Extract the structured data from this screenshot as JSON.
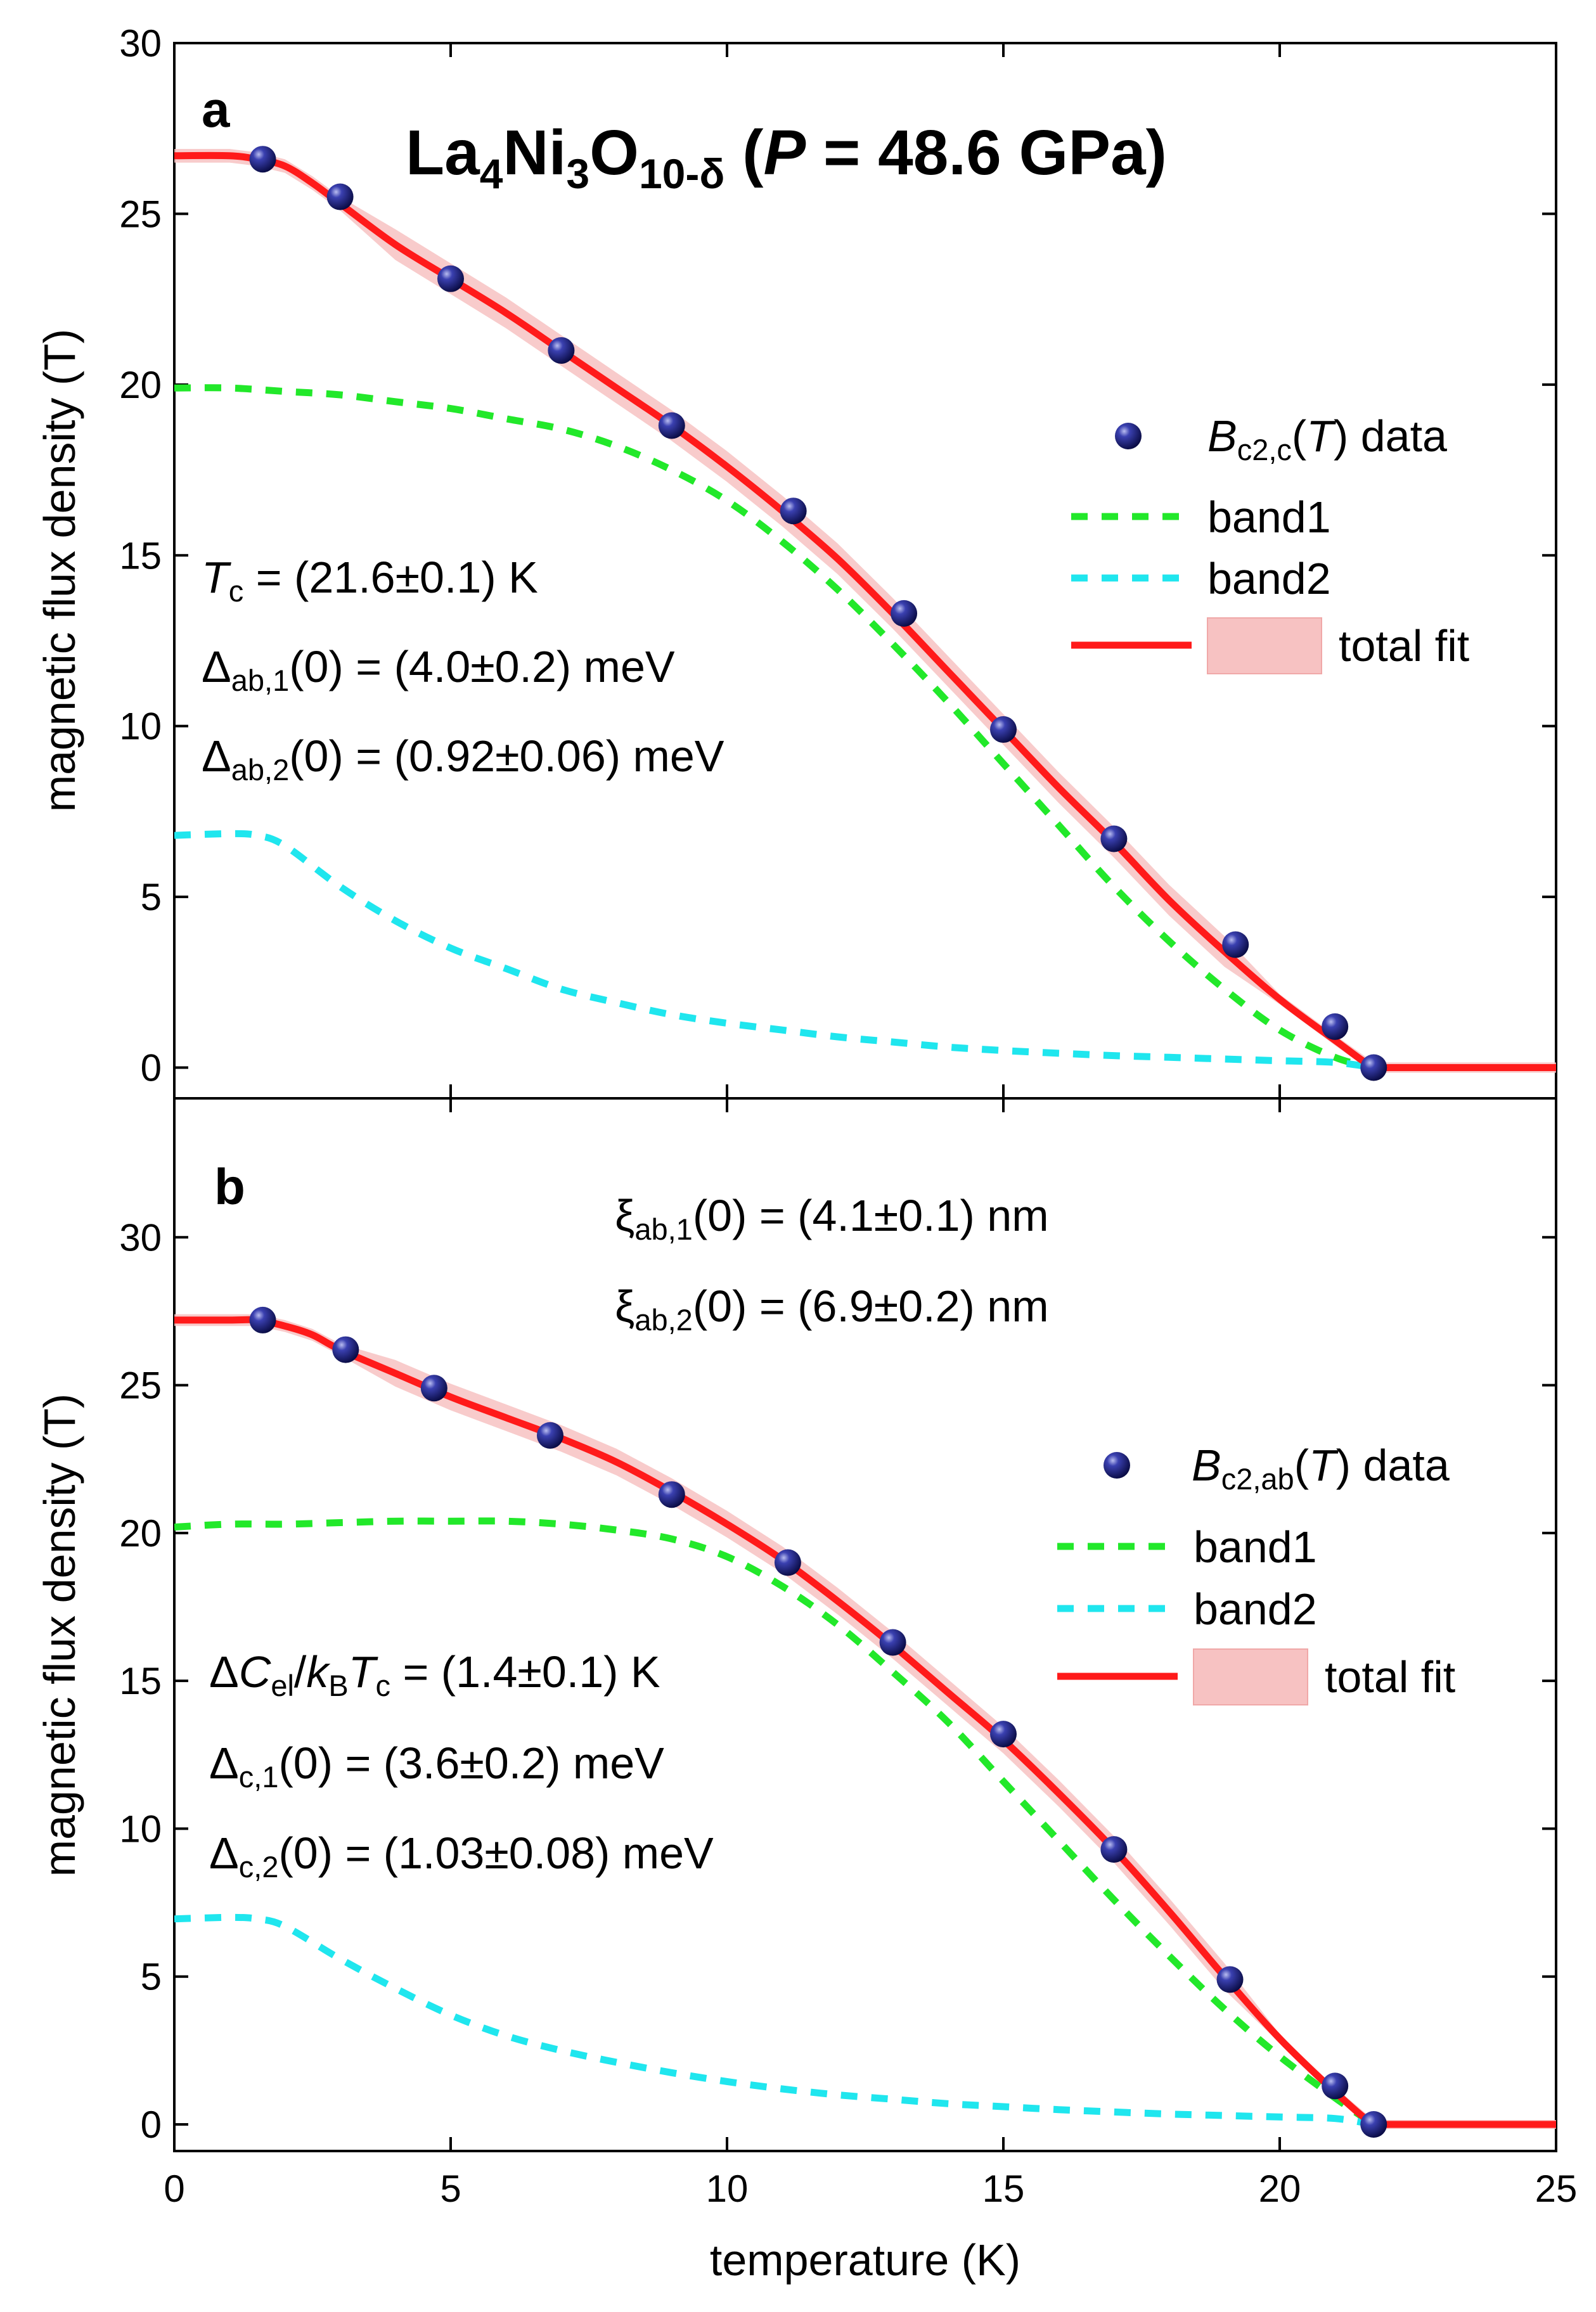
{
  "chart_data": [
    {
      "type": "line",
      "panel": "a",
      "title_parts": {
        "la": "La",
        "la_sub": "4",
        "ni": "Ni",
        "ni_sub": "3",
        "o": "O",
        "o_sub": "10-δ",
        "open": " (",
        "p": "P",
        "eq": " = 48.6 GPa)"
      },
      "xlabel": "temperature (K)",
      "ylabel": "magnetic flux density (T)",
      "xlim": [
        0,
        25
      ],
      "ylim": [
        -0.9,
        30
      ],
      "xticks": [
        0,
        5,
        10,
        15,
        20,
        25
      ],
      "yticks": [
        0,
        5,
        10,
        15,
        20,
        25,
        30
      ],
      "legend": {
        "data": {
          "b": "B",
          "sub": "c2,c",
          "open": "(",
          "t": "T",
          "close": ") data"
        },
        "band1": "band1",
        "band2": "band2",
        "total": "total fit"
      },
      "annotations": [
        {
          "main": "T",
          "sub": "c",
          "rest": " = (21.6±0.1) K"
        },
        {
          "main": "Δ",
          "sub": "ab,1",
          "rest": "(0) = (4.0±0.2) meV"
        },
        {
          "main": "Δ",
          "sub": "ab,2",
          "rest": "(0) = (0.92±0.06) meV"
        }
      ],
      "data_points": {
        "x": [
          1.6,
          3.0,
          5.0,
          7.0,
          9.0,
          11.2,
          13.2,
          15.0,
          17.0,
          19.2,
          21.0,
          21.7
        ],
        "y": [
          26.6,
          25.5,
          23.1,
          21.0,
          18.8,
          16.3,
          13.3,
          9.9,
          6.7,
          3.6,
          1.2,
          0.0
        ]
      },
      "band1": {
        "x": [
          0,
          1,
          2,
          3,
          4,
          5,
          6,
          7,
          8,
          9,
          10,
          11,
          12,
          13,
          14,
          15,
          16,
          17,
          18,
          19,
          20,
          21,
          21.7
        ],
        "y": [
          19.9,
          19.9,
          19.8,
          19.7,
          19.5,
          19.3,
          19.0,
          18.7,
          18.2,
          17.5,
          16.6,
          15.4,
          14.0,
          12.4,
          10.7,
          8.9,
          7.1,
          5.3,
          3.7,
          2.3,
          1.1,
          0.3,
          0.0
        ]
      },
      "band2": {
        "x": [
          0,
          1,
          1.5,
          2,
          3,
          4,
          5,
          6,
          7,
          8,
          9,
          10,
          11,
          12,
          13,
          14,
          15,
          16,
          17,
          18,
          19,
          20,
          21,
          21.7
        ],
        "y": [
          6.8,
          6.85,
          6.8,
          6.5,
          5.3,
          4.3,
          3.5,
          2.9,
          2.3,
          1.9,
          1.55,
          1.3,
          1.1,
          0.9,
          0.75,
          0.6,
          0.5,
          0.42,
          0.35,
          0.3,
          0.25,
          0.2,
          0.15,
          0.0
        ]
      },
      "total": {
        "x": [
          0,
          1,
          1.5,
          2,
          2.5,
          3,
          4,
          5,
          6,
          7,
          8,
          9,
          10,
          11,
          12,
          13,
          14,
          15,
          16,
          17,
          18,
          19,
          20,
          21,
          21.7,
          22,
          25
        ],
        "y": [
          26.7,
          26.7,
          26.6,
          26.4,
          25.9,
          25.3,
          24.1,
          23.1,
          22.1,
          21.0,
          19.9,
          18.8,
          17.6,
          16.3,
          14.9,
          13.3,
          11.6,
          9.9,
          8.2,
          6.6,
          4.9,
          3.4,
          2.0,
          0.8,
          0.0,
          0.0,
          0.0
        ]
      },
      "colors": {
        "data": "#1b1e7a",
        "band1": "#22e82a",
        "band2": "#1fe6ee",
        "total": "#ff1a1a",
        "band": "#f7c2c2"
      }
    },
    {
      "type": "line",
      "panel": "b",
      "xlabel": "temperature (K)",
      "ylabel": "magnetic flux density (T)",
      "xlim": [
        0,
        25
      ],
      "ylim": [
        -0.9,
        34.7
      ],
      "xticks": [
        0,
        5,
        10,
        15,
        20,
        25
      ],
      "yticks": [
        0,
        5,
        10,
        15,
        20,
        25,
        30
      ],
      "legend": {
        "data": {
          "b": "B",
          "sub": "c2,ab",
          "open": "(",
          "t": "T",
          "close": ") data"
        },
        "band1": "band1",
        "band2": "band2",
        "total": "total fit"
      },
      "annotations_top": [
        {
          "main": "ξ",
          "sub": "ab,1",
          "rest": "(0) = (4.1±0.1) nm"
        },
        {
          "main": "ξ",
          "sub": "ab,2",
          "rest": "(0) = (6.9±0.2) nm"
        }
      ],
      "heat": {
        "d": "Δ",
        "c": "C",
        "el": "el",
        "slash": "/",
        "k": "k",
        "B": "B",
        "t": "T",
        "csub": "c",
        "rest": " = (1.4±0.1) K"
      },
      "annotations": [
        {
          "main": "Δ",
          "sub": "c,1",
          "rest": "(0) = (3.6±0.2) meV"
        },
        {
          "main": "Δ",
          "sub": "c,2",
          "rest": "(0) = (1.03±0.08) meV"
        }
      ],
      "data_points": {
        "x": [
          1.6,
          3.1,
          4.7,
          6.8,
          9.0,
          11.1,
          13.0,
          15.0,
          17.0,
          19.1,
          21.0,
          21.7
        ],
        "y": [
          27.2,
          26.2,
          24.9,
          23.3,
          21.3,
          19.0,
          16.3,
          13.2,
          9.3,
          4.9,
          1.3,
          0.0
        ]
      },
      "band1": {
        "x": [
          0,
          1,
          2,
          3,
          4,
          5,
          6,
          7,
          8,
          9,
          10,
          11,
          12,
          13,
          14,
          15,
          16,
          17,
          18,
          19,
          20,
          21,
          21.7
        ],
        "y": [
          20.2,
          20.3,
          20.3,
          20.35,
          20.4,
          20.4,
          20.4,
          20.3,
          20.1,
          19.8,
          19.2,
          18.2,
          16.9,
          15.3,
          13.6,
          11.6,
          9.6,
          7.6,
          5.7,
          3.9,
          2.3,
          0.9,
          0.0
        ]
      },
      "band2": {
        "x": [
          0,
          1,
          1.5,
          2,
          3,
          4,
          5,
          6,
          7,
          8,
          9,
          10,
          11,
          12,
          13,
          14,
          15,
          16,
          17,
          18,
          19,
          20,
          21,
          21.7
        ],
        "y": [
          6.95,
          7.0,
          6.95,
          6.7,
          5.6,
          4.6,
          3.7,
          3.0,
          2.5,
          2.1,
          1.75,
          1.45,
          1.2,
          1.0,
          0.85,
          0.7,
          0.6,
          0.5,
          0.42,
          0.35,
          0.3,
          0.25,
          0.2,
          0.0
        ]
      },
      "total": {
        "x": [
          0,
          1,
          1.5,
          2,
          2.5,
          3,
          4,
          5,
          6,
          7,
          8,
          9,
          10,
          11,
          12,
          13,
          14,
          15,
          16,
          17,
          18,
          19,
          20,
          21,
          21.7,
          22,
          25
        ],
        "y": [
          27.2,
          27.2,
          27.2,
          27.0,
          26.7,
          26.2,
          25.4,
          24.6,
          23.9,
          23.2,
          22.4,
          21.4,
          20.3,
          19.1,
          17.7,
          16.2,
          14.6,
          13.0,
          11.2,
          9.3,
          7.2,
          5.0,
          2.9,
          1.1,
          0.0,
          0.0,
          0.0
        ]
      },
      "colors": {
        "data": "#1b1e7a",
        "band1": "#22e82a",
        "band2": "#1fe6ee",
        "total": "#ff1a1a",
        "band": "#f7c2c2"
      }
    }
  ]
}
